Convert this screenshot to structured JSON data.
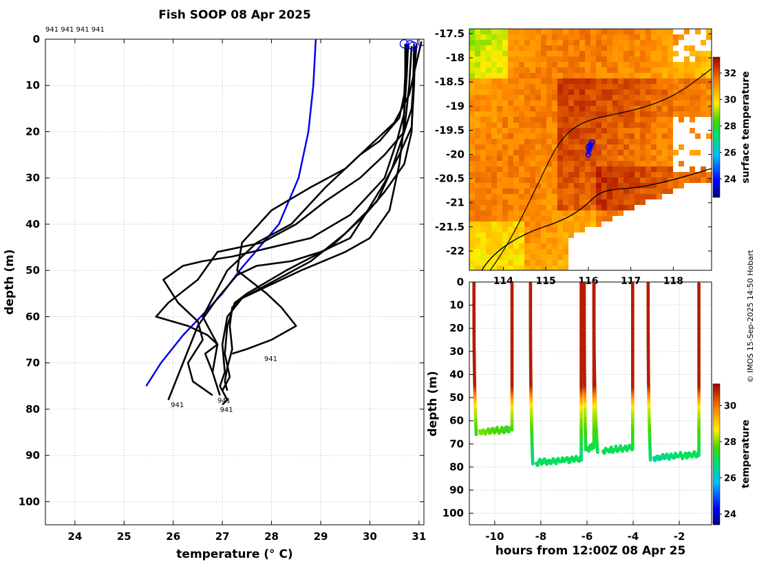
{
  "figure": {
    "title": "Fish SOOP 08 Apr 2025",
    "credit": "© IMOS 15-Sep-2025 14:50 Hobart"
  },
  "chart_data": [
    {
      "id": "profile",
      "type": "line",
      "title": "Fish SOOP 08 Apr 2025",
      "xlabel": "temperature (° C)",
      "ylabel": "depth (m)",
      "xlim": [
        23.4,
        31.1
      ],
      "ylim": [
        105,
        0
      ],
      "xticks": [
        24,
        25,
        26,
        27,
        28,
        29,
        30,
        31
      ],
      "yticks": [
        0,
        10,
        20,
        30,
        40,
        50,
        60,
        70,
        80,
        90,
        100
      ],
      "grid": true,
      "top_labels": "941 941 941 941",
      "end_labels": [
        {
          "text": "941",
          "x": 27.85,
          "y": 69
        },
        {
          "text": "941",
          "x": 25.95,
          "y": 79
        },
        {
          "text": "941",
          "x": 26.9,
          "y": 78
        },
        {
          "text": "941",
          "x": 26.95,
          "y": 80
        }
      ],
      "start_markers": [
        {
          "x": 30.7,
          "y": 1
        },
        {
          "x": 30.82,
          "y": 1.2
        },
        {
          "x": 30.88,
          "y": 1.5
        },
        {
          "x": 31.05,
          "y": 0.5
        }
      ],
      "climatology": {
        "name": "climatology",
        "color": "#0000ee",
        "x": [
          28.9,
          28.85,
          28.75,
          28.55,
          28.15,
          27.75,
          27.35,
          27.0,
          26.65,
          26.2,
          25.75,
          25.45
        ],
        "y": [
          0,
          10,
          20,
          30,
          40,
          45,
          50,
          55,
          59,
          64,
          70,
          75
        ]
      },
      "series": [
        {
          "name": "cast1",
          "x": [
            30.72,
            30.72,
            30.68,
            30.6,
            30.5,
            30.4,
            30.0,
            29.5,
            28.6,
            28.0,
            27.4,
            27.1,
            27.0,
            27.05,
            26.95,
            27.1,
            27.0
          ],
          "y": [
            1,
            10,
            20,
            27,
            32,
            37,
            43,
            46,
            50,
            53,
            56,
            60,
            66,
            72,
            75,
            78,
            79
          ]
        },
        {
          "name": "cast2",
          "x": [
            30.85,
            30.8,
            30.7,
            30.45,
            30.15,
            29.5,
            28.8,
            28.1,
            27.4,
            27.2,
            27.15,
            27.2,
            27.1,
            27.05,
            27.1
          ],
          "y": [
            1.5,
            10,
            20,
            28,
            35,
            42,
            48,
            52,
            56,
            58,
            62,
            67,
            71,
            74,
            76
          ]
        },
        {
          "name": "cast3",
          "x": [
            30.92,
            30.9,
            30.85,
            30.6,
            30.3,
            29.9,
            29.2,
            28.3,
            27.5,
            27.25,
            27.1,
            27.05,
            27.15,
            27.0
          ],
          "y": [
            1.5,
            10,
            19,
            25,
            31,
            38,
            45,
            50,
            55,
            57,
            62,
            68,
            73,
            76
          ]
        },
        {
          "name": "cast4",
          "x": [
            31.05,
            30.95,
            30.8,
            30.5,
            30.0,
            29.5,
            28.8,
            28.0,
            27.4,
            27.3,
            27.9,
            28.2,
            28.5,
            28.0,
            27.5,
            27.2
          ],
          "y": [
            0.5,
            5,
            12,
            18,
            23,
            28,
            32,
            37,
            44,
            50,
            55,
            58,
            62,
            65,
            67,
            68
          ]
        },
        {
          "name": "cast5",
          "x": [
            30.9,
            30.88,
            30.85,
            30.7,
            30.3,
            29.9,
            29.6,
            29.0,
            28.4,
            27.7,
            27.3,
            26.9,
            26.5,
            26.2,
            25.9
          ],
          "y": [
            1,
            10,
            20,
            27,
            33,
            38,
            43,
            46,
            48,
            49,
            51,
            56,
            62,
            70,
            78
          ]
        },
        {
          "name": "cast6",
          "x": [
            30.75,
            30.7,
            30.6,
            30.2,
            29.8,
            29.1,
            28.4,
            27.7,
            27.1,
            26.9,
            26.6,
            26.9,
            26.8,
            26.95
          ],
          "y": [
            1,
            12,
            17,
            22,
            25,
            32,
            40,
            44,
            50,
            54,
            60,
            66,
            72,
            77
          ]
        },
        {
          "name": "cast7",
          "x": [
            30.78,
            30.75,
            30.7,
            30.55,
            30.3,
            29.6,
            28.8,
            28.0,
            27.2,
            26.6,
            26.2,
            25.8,
            26.1,
            26.5,
            26.6,
            26.3,
            26.4,
            26.8
          ],
          "y": [
            1,
            8,
            16,
            22,
            30,
            38,
            43,
            45,
            47,
            48,
            49,
            52,
            57,
            61,
            65,
            70,
            74,
            77
          ]
        },
        {
          "name": "cast8",
          "x": [
            30.95,
            30.9,
            30.85,
            30.7,
            30.3,
            29.8,
            29.1,
            28.5,
            27.8,
            26.9,
            26.5,
            25.9,
            25.65,
            26.3,
            26.7,
            26.9,
            26.65,
            26.8
          ],
          "y": [
            1,
            8,
            15,
            20,
            25,
            30,
            35,
            40,
            44,
            46,
            52,
            57,
            60,
            62,
            64,
            66,
            68,
            72
          ]
        }
      ]
    },
    {
      "id": "map",
      "type": "heatmap",
      "xlim": [
        113.2,
        118.9
      ],
      "ylim": [
        -22.4,
        -17.4
      ],
      "xticks": [
        114,
        115,
        116,
        117,
        118
      ],
      "yticks": [
        -17.5,
        -18,
        -18.5,
        -19,
        -19.5,
        -20,
        -20.5,
        -21,
        -21.5,
        -22
      ],
      "colorbar": {
        "label": "surface temperature",
        "vmin": 22.6,
        "vmax": 33.2,
        "ticks": [
          24,
          26,
          28,
          30,
          32
        ]
      },
      "track": {
        "lon": [
          116.0,
          116.02,
          116.05,
          116.08,
          116.05,
          116.0
        ],
        "lat": [
          -20.0,
          -19.9,
          -19.82,
          -19.75,
          -19.8,
          -19.85
        ]
      }
    },
    {
      "id": "section",
      "type": "scatter",
      "xlabel": "hours from 12:00Z 08 Apr 25",
      "ylabel": "depth (m)",
      "xlim": [
        -11.1,
        -0.6
      ],
      "ylim": [
        105,
        0
      ],
      "xticks": [
        -10,
        -8,
        -6,
        -4,
        -2
      ],
      "yticks": [
        0,
        10,
        20,
        30,
        40,
        50,
        60,
        70,
        80,
        90,
        100
      ],
      "colorbar": {
        "label": "temperature",
        "vmin": 23.4,
        "vmax": 31.2,
        "ticks": [
          24,
          26,
          28,
          30
        ]
      },
      "casts": [
        {
          "x0": -10.9,
          "xb": -10.65,
          "x1": -9.25,
          "bottom": 66,
          "bottomT": 28.0,
          "exitT": 27.4
        },
        {
          "x0": -8.45,
          "xb": -8.2,
          "x1": -6.25,
          "bottom": 79,
          "bottomT": 26.9,
          "exitT": 27.0
        },
        {
          "x0": -6.12,
          "xb": -5.95,
          "x1": -5.7,
          "bottom": 73,
          "bottomT": 27.1,
          "exitT": 27.2
        },
        {
          "x0": -5.7,
          "xb": -5.3,
          "x1": -4.02,
          "bottom": 74,
          "bottomT": 27.0,
          "exitT": 27.0
        },
        {
          "x0": -3.35,
          "xb": -3.1,
          "x1": -1.15,
          "bottom": 77,
          "bottomT": 26.5,
          "exitT": 27.1
        }
      ]
    }
  ]
}
